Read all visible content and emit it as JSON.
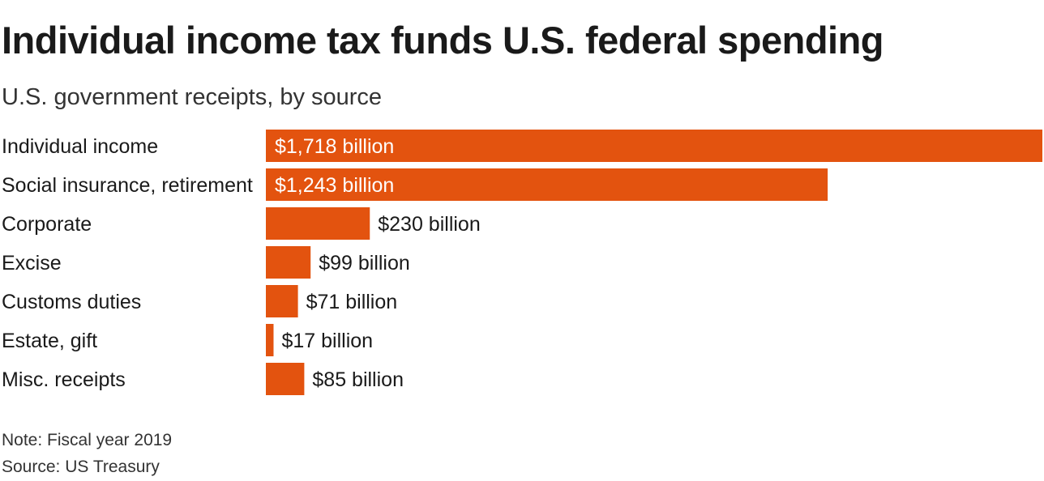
{
  "chart_data": {
    "type": "bar",
    "orientation": "horizontal",
    "title": "Individual income tax funds U.S. federal spending",
    "subtitle": "U.S. government receipts, by source",
    "categories": [
      "Individual income",
      "Social insurance, retirement",
      "Corporate",
      "Excise",
      "Customs duties",
      "Estate, gift",
      "Misc. receipts"
    ],
    "values": [
      1718,
      1243,
      230,
      99,
      71,
      17,
      85
    ],
    "data_labels": [
      "$1,718 billion",
      "$1,243 billion",
      "$230 billion",
      "$99 billion",
      "$71 billion",
      "$17 billion",
      "$85 billion"
    ],
    "units": "billion USD",
    "xlim": [
      0,
      1718
    ],
    "grid": false,
    "legend": "none",
    "bar_color": "#e3530f",
    "inside_label_color": "#ffffff",
    "outside_label_color": "#1a1a1a",
    "note": "Note: Fiscal year 2019",
    "source": "Source: US Treasury"
  }
}
